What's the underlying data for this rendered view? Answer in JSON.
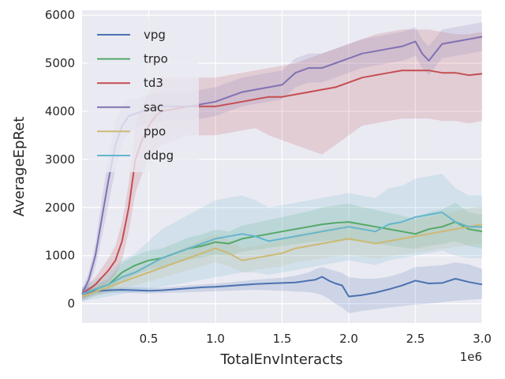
{
  "chart_data": {
    "type": "line",
    "xlabel": "TotalEnvInteracts",
    "ylabel": "AverageEpRet",
    "x_offset_label": "1e6",
    "xlim": [
      0,
      3000000
    ],
    "ylim": [
      -400,
      6100
    ],
    "x_ticks": [
      500000,
      1000000,
      1500000,
      2000000,
      2500000,
      3000000
    ],
    "x_tick_labels": [
      "0.5",
      "1.0",
      "1.5",
      "2.0",
      "2.5",
      "3.0"
    ],
    "y_ticks": [
      0,
      1000,
      2000,
      3000,
      4000,
      5000,
      6000
    ],
    "y_tick_labels": [
      "0",
      "1000",
      "2000",
      "3000",
      "4000",
      "5000",
      "6000"
    ],
    "grid": true,
    "legend_position": "upper-left",
    "shaded_band": "spread across runs",
    "colors": {
      "background": "#eaeaf2",
      "grid": "#ffffff"
    },
    "series": [
      {
        "name": "vpg",
        "color": "#4c72b0",
        "x": [
          0,
          100000,
          200000,
          300000,
          400000,
          500000,
          600000,
          700000,
          800000,
          900000,
          1000000,
          1100000,
          1200000,
          1300000,
          1400000,
          1500000,
          1600000,
          1700000,
          1750000,
          1800000,
          1850000,
          1900000,
          1950000,
          2000000,
          2100000,
          2200000,
          2300000,
          2400000,
          2500000,
          2600000,
          2700000,
          2800000,
          2900000,
          3000000
        ],
        "y": [
          200,
          260,
          280,
          290,
          280,
          270,
          280,
          300,
          320,
          340,
          350,
          370,
          390,
          410,
          420,
          430,
          440,
          480,
          500,
          560,
          480,
          420,
          380,
          150,
          180,
          230,
          300,
          380,
          480,
          420,
          430,
          520,
          450,
          400
        ],
        "lower": [
          50,
          180,
          220,
          230,
          220,
          210,
          220,
          230,
          240,
          250,
          260,
          270,
          280,
          290,
          280,
          270,
          250,
          240,
          220,
          180,
          100,
          0,
          -80,
          -200,
          -150,
          -120,
          -80,
          -50,
          -20,
          0,
          30,
          60,
          80,
          100
        ],
        "upper": [
          350,
          330,
          330,
          340,
          340,
          330,
          330,
          360,
          380,
          400,
          420,
          440,
          470,
          500,
          520,
          540,
          580,
          650,
          720,
          760,
          720,
          680,
          640,
          550,
          520,
          520,
          560,
          640,
          760,
          780,
          800,
          860,
          820,
          720
        ]
      },
      {
        "name": "trpo",
        "color": "#55a868",
        "x": [
          0,
          100000,
          200000,
          300000,
          400000,
          500000,
          600000,
          700000,
          800000,
          900000,
          1000000,
          1100000,
          1200000,
          1300000,
          1400000,
          1500000,
          1600000,
          1700000,
          1800000,
          1900000,
          2000000,
          2100000,
          2200000,
          2300000,
          2400000,
          2500000,
          2600000,
          2700000,
          2800000,
          2900000,
          3000000
        ],
        "y": [
          200,
          300,
          400,
          650,
          800,
          900,
          950,
          1050,
          1150,
          1200,
          1280,
          1250,
          1350,
          1400,
          1450,
          1500,
          1550,
          1600,
          1650,
          1680,
          1700,
          1650,
          1600,
          1550,
          1500,
          1450,
          1550,
          1600,
          1700,
          1550,
          1500
        ],
        "lower": [
          100,
          200,
          280,
          450,
          600,
          700,
          760,
          840,
          920,
          960,
          1020,
          1000,
          1080,
          1120,
          1160,
          1200,
          1240,
          1280,
          1300,
          1320,
          1320,
          1290,
          1250,
          1210,
          1170,
          1140,
          1200,
          1240,
          1300,
          1200,
          1150
        ],
        "upper": [
          300,
          400,
          520,
          850,
          1000,
          1100,
          1150,
          1260,
          1380,
          1440,
          1540,
          1500,
          1620,
          1680,
          1740,
          1800,
          1860,
          1920,
          2000,
          2040,
          2080,
          2010,
          1950,
          1890,
          1830,
          1760,
          1900,
          1960,
          2100,
          1900,
          1850
        ]
      },
      {
        "name": "td3",
        "color": "#c44e52",
        "x": [
          0,
          100000,
          200000,
          250000,
          300000,
          350000,
          400000,
          450000,
          500000,
          550000,
          600000,
          700000,
          800000,
          900000,
          1000000,
          1100000,
          1200000,
          1300000,
          1400000,
          1500000,
          1600000,
          1700000,
          1800000,
          1900000,
          2000000,
          2100000,
          2200000,
          2300000,
          2400000,
          2500000,
          2600000,
          2700000,
          2800000,
          2900000,
          3000000
        ],
        "y": [
          200,
          400,
          700,
          900,
          1300,
          2000,
          3000,
          3400,
          3700,
          3900,
          4000,
          4050,
          4100,
          4100,
          4100,
          4150,
          4200,
          4250,
          4300,
          4300,
          4350,
          4400,
          4450,
          4500,
          4600,
          4700,
          4750,
          4800,
          4850,
          4850,
          4850,
          4800,
          4800,
          4750,
          4780
        ],
        "lower": [
          100,
          250,
          450,
          600,
          900,
          1500,
          2300,
          2700,
          3000,
          3200,
          3300,
          3400,
          3500,
          3500,
          3500,
          3550,
          3600,
          3650,
          3500,
          3400,
          3300,
          3200,
          3100,
          3300,
          3500,
          3700,
          3750,
          3800,
          3850,
          3850,
          3850,
          3800,
          3800,
          3750,
          3800
        ],
        "upper": [
          300,
          550,
          950,
          1200,
          1700,
          2500,
          3700,
          4100,
          4400,
          4600,
          4700,
          4700,
          4700,
          4700,
          4700,
          4750,
          4800,
          4850,
          4900,
          4950,
          5000,
          5100,
          5200,
          5300,
          5400,
          5500,
          5600,
          5650,
          5700,
          5700,
          5700,
          5650,
          5600,
          5600,
          5650
        ]
      },
      {
        "name": "sac",
        "color": "#8172b2",
        "x": [
          0,
          50000,
          100000,
          150000,
          200000,
          250000,
          300000,
          350000,
          400000,
          450000,
          500000,
          600000,
          700000,
          800000,
          900000,
          1000000,
          1100000,
          1200000,
          1300000,
          1400000,
          1500000,
          1600000,
          1700000,
          1800000,
          1900000,
          2000000,
          2100000,
          2200000,
          2300000,
          2400000,
          2500000,
          2550000,
          2600000,
          2700000,
          2800000,
          2900000,
          3000000
        ],
        "y": [
          200,
          500,
          1000,
          1800,
          2600,
          3300,
          3700,
          3900,
          3950,
          4000,
          4050,
          4100,
          4100,
          4100,
          4150,
          4200,
          4300,
          4400,
          4450,
          4500,
          4550,
          4800,
          4900,
          4900,
          5000,
          5100,
          5200,
          5250,
          5300,
          5350,
          5450,
          5200,
          5050,
          5400,
          5450,
          5500,
          5550
        ],
        "lower": [
          100,
          350,
          750,
          1400,
          2100,
          2800,
          3300,
          3550,
          3650,
          3700,
          3750,
          3800,
          3800,
          3800,
          3850,
          3900,
          4000,
          4100,
          4150,
          4200,
          4250,
          4500,
          4600,
          4600,
          4700,
          4800,
          4900,
          4950,
          5000,
          5050,
          5150,
          4900,
          4750,
          5100,
          5150,
          5200,
          5250
        ],
        "upper": [
          300,
          650,
          1250,
          2200,
          3100,
          3800,
          4100,
          4250,
          4250,
          4300,
          4350,
          4400,
          4400,
          4400,
          4450,
          4500,
          4600,
          4700,
          4750,
          4800,
          4850,
          5100,
          5200,
          5200,
          5300,
          5400,
          5500,
          5550,
          5600,
          5650,
          5750,
          5500,
          5350,
          5700,
          5750,
          5800,
          5850
        ]
      },
      {
        "name": "ppo",
        "color": "#ccb974",
        "x": [
          0,
          100000,
          200000,
          300000,
          400000,
          500000,
          600000,
          700000,
          800000,
          900000,
          1000000,
          1100000,
          1200000,
          1300000,
          1400000,
          1500000,
          1600000,
          1700000,
          1800000,
          1900000,
          2000000,
          2100000,
          2200000,
          2300000,
          2400000,
          2500000,
          2600000,
          2700000,
          2800000,
          2900000,
          3000000
        ],
        "y": [
          150,
          250,
          350,
          450,
          550,
          650,
          750,
          850,
          950,
          1050,
          1150,
          1050,
          900,
          950,
          1000,
          1050,
          1150,
          1200,
          1250,
          1300,
          1350,
          1300,
          1250,
          1300,
          1350,
          1400,
          1450,
          1500,
          1550,
          1600,
          1650
        ],
        "lower": [
          80,
          150,
          230,
          300,
          380,
          460,
          540,
          620,
          700,
          780,
          860,
          780,
          650,
          700,
          740,
          780,
          860,
          900,
          940,
          980,
          1020,
          980,
          940,
          980,
          1020,
          1060,
          1100,
          1140,
          1180,
          1220,
          1260
        ],
        "upper": [
          220,
          350,
          470,
          600,
          720,
          840,
          960,
          1080,
          1200,
          1320,
          1440,
          1320,
          1150,
          1200,
          1260,
          1320,
          1440,
          1500,
          1560,
          1620,
          1680,
          1620,
          1560,
          1620,
          1680,
          1740,
          1800,
          1860,
          1920,
          1980,
          2040
        ]
      },
      {
        "name": "ddpg",
        "color": "#64b5cd",
        "x": [
          0,
          100000,
          200000,
          300000,
          400000,
          500000,
          600000,
          700000,
          800000,
          900000,
          1000000,
          1100000,
          1200000,
          1300000,
          1400000,
          1500000,
          1600000,
          1700000,
          1800000,
          1900000,
          2000000,
          2100000,
          2200000,
          2300000,
          2400000,
          2500000,
          2600000,
          2700000,
          2800000,
          2900000,
          3000000
        ],
        "y": [
          200,
          300,
          400,
          550,
          650,
          800,
          950,
          1050,
          1150,
          1250,
          1350,
          1400,
          1450,
          1400,
          1300,
          1350,
          1400,
          1450,
          1500,
          1550,
          1600,
          1550,
          1500,
          1650,
          1700,
          1800,
          1850,
          1900,
          1700,
          1600,
          1600
        ],
        "lower": [
          50,
          100,
          150,
          200,
          250,
          300,
          350,
          400,
          450,
          500,
          550,
          600,
          650,
          650,
          600,
          650,
          700,
          750,
          800,
          850,
          900,
          850,
          800,
          900,
          950,
          1000,
          1050,
          1100,
          1000,
          950,
          950
        ],
        "upper": [
          350,
          500,
          650,
          900,
          1050,
          1300,
          1550,
          1700,
          1850,
          2000,
          2150,
          2200,
          2250,
          2150,
          2000,
          2050,
          2100,
          2150,
          2200,
          2250,
          2300,
          2250,
          2200,
          2400,
          2450,
          2600,
          2650,
          2700,
          2400,
          2250,
          2250
        ]
      }
    ]
  }
}
